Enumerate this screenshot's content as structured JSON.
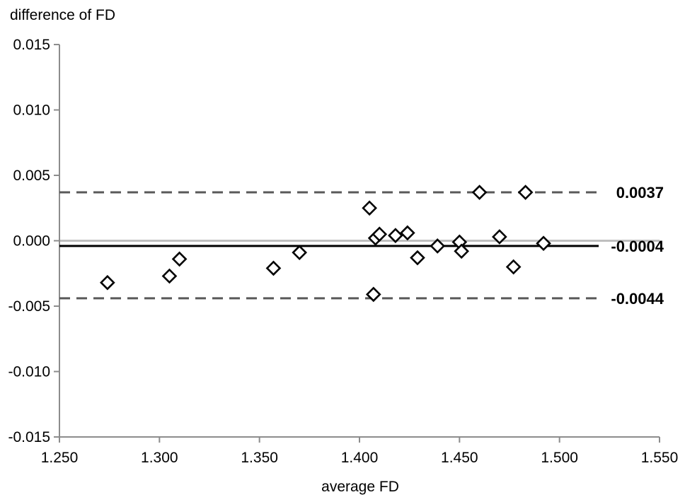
{
  "chart_data": {
    "type": "scatter",
    "title": "",
    "xlabel": "average FD",
    "ylabel": "difference of FD",
    "xlim": [
      1.25,
      1.55
    ],
    "ylim": [
      -0.015,
      0.015
    ],
    "xticks": [
      "1.250",
      "1.300",
      "1.350",
      "1.400",
      "1.450",
      "1.500",
      "1.550"
    ],
    "yticks": [
      "0.015",
      "0.010",
      "0.005",
      "0.000",
      "-0.005",
      "-0.010",
      "-0.015"
    ],
    "grid": false,
    "legend": "none",
    "marker": "open-diamond",
    "points": [
      {
        "x": 1.274,
        "y": -0.0032
      },
      {
        "x": 1.305,
        "y": -0.0027
      },
      {
        "x": 1.31,
        "y": -0.0014
      },
      {
        "x": 1.357,
        "y": -0.0021
      },
      {
        "x": 1.37,
        "y": -0.0009
      },
      {
        "x": 1.405,
        "y": 0.0025
      },
      {
        "x": 1.407,
        "y": -0.0041
      },
      {
        "x": 1.408,
        "y": 0.0002
      },
      {
        "x": 1.41,
        "y": 0.0005
      },
      {
        "x": 1.418,
        "y": 0.0004
      },
      {
        "x": 1.424,
        "y": 0.0006
      },
      {
        "x": 1.429,
        "y": -0.0013
      },
      {
        "x": 1.439,
        "y": -0.0004
      },
      {
        "x": 1.45,
        "y": -0.0001
      },
      {
        "x": 1.451,
        "y": -0.0008
      },
      {
        "x": 1.46,
        "y": 0.0037
      },
      {
        "x": 1.47,
        "y": 0.0003
      },
      {
        "x": 1.477,
        "y": -0.002
      },
      {
        "x": 1.483,
        "y": 0.0037
      },
      {
        "x": 1.492,
        "y": -0.0002
      }
    ],
    "reference_lines": [
      {
        "value": 0.0037,
        "label": "0.0037",
        "style": "dashed",
        "color": "#595959"
      },
      {
        "value": -0.0004,
        "label": "-0.0004",
        "style": "solid",
        "color": "#000000"
      },
      {
        "value": -0.0044,
        "label": "-0.0044",
        "style": "dashed",
        "color": "#595959"
      }
    ],
    "zero_line": {
      "value": 0.0,
      "color": "#bfbfbf"
    },
    "axis_color": "#8c8c8c"
  }
}
